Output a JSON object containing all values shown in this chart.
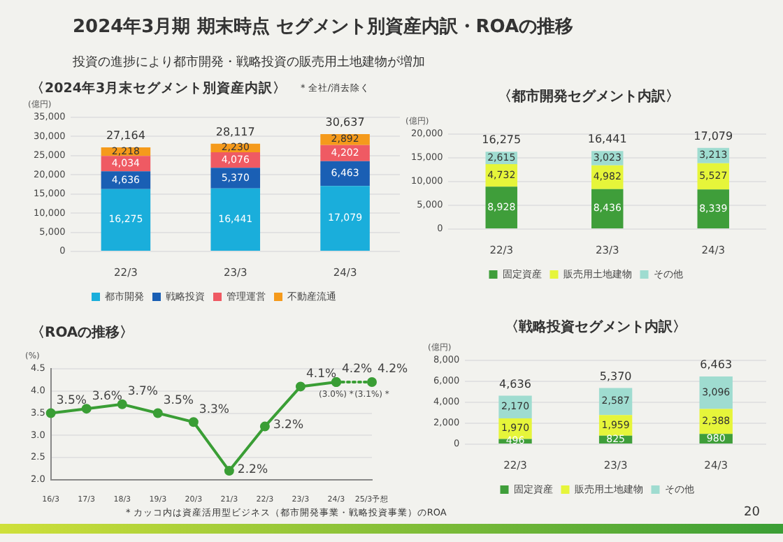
{
  "chart_data": [
    {
      "type": "bar",
      "title": "2024年3月期 期末時点 セグメント別資産内訳・ROAの推移",
      "subtitle": "投資の進捗により都市開発・戦略投資の販売用土地建物が増加",
      "annotations": [
        "〈2024年3月末セグメント別資産内訳〉",
        "* 全社/消去除く"
      ],
      "ylabel": "(億円)",
      "categories": [
        "22/3",
        "23/3",
        "24/3"
      ],
      "stacked": true,
      "totals": [
        "27,164",
        "28,117",
        "30,637"
      ],
      "legend": "bottom",
      "grid": "y",
      "ylim": [
        0,
        35000
      ],
      "yticks": [
        0,
        {
          "value": 5000,
          "label": "5,000"
        },
        {
          "value": 10000,
          "label": "10,000"
        },
        {
          "value": 15000,
          "label": "15,000"
        },
        {
          "value": 20000,
          "label": "20,000"
        },
        {
          "value": 25000,
          "label": "25,000"
        },
        {
          "value": 30000,
          "label": "30,000"
        },
        {
          "value": 35000,
          "label": "35,000"
        }
      ],
      "series": [
        {
          "name": "都市開発",
          "color": "#1aaedb",
          "values": [
            16275,
            16441,
            17079
          ],
          "value_labels": [
            "16,275",
            "16,441",
            "17,079"
          ]
        },
        {
          "name": "戦略投資",
          "color": "#1a5fb4",
          "values": [
            4636,
            5370,
            6463
          ],
          "value_labels": [
            "4,636",
            "5,370",
            "6,463"
          ]
        },
        {
          "name": "管理運営",
          "color": "#ef5a63",
          "values": [
            4034,
            4076,
            4202
          ],
          "value_labels": [
            "4,034",
            "4,076",
            "4,202"
          ]
        },
        {
          "name": "不動産流通",
          "color": "#f59a1b",
          "values": [
            2218,
            2230,
            2892
          ],
          "value_labels": [
            "2,218",
            "2,230",
            "2,892"
          ]
        }
      ]
    },
    {
      "type": "bar",
      "title": "〈都市開発セグメント内訳〉",
      "ylabel": "(億円)",
      "categories": [
        "22/3",
        "23/3",
        "24/3"
      ],
      "stacked": true,
      "totals": [
        "16,275",
        "16,441",
        "17,079"
      ],
      "legend": "bottom",
      "grid": "y",
      "ylim": [
        0,
        20000
      ],
      "yticks": [
        0,
        {
          "value": 5000,
          "label": "5,000"
        },
        {
          "value": 10000,
          "label": "10,000"
        },
        {
          "value": 15000,
          "label": "15,000"
        },
        {
          "value": 20000,
          "label": "20,000"
        }
      ],
      "series": [
        {
          "name": "固定資産",
          "color": "#3f9e3a",
          "values": [
            8928,
            8436,
            8339
          ],
          "value_labels": [
            "8,928",
            "8,436",
            "8,339"
          ]
        },
        {
          "name": "販売用土地建物",
          "color": "#e6f53a",
          "values": [
            4732,
            4982,
            5527
          ],
          "value_labels": [
            "4,732",
            "4,982",
            "5,527"
          ]
        },
        {
          "name": "その他",
          "color": "#9fdcd0",
          "values": [
            2615,
            3023,
            3213
          ],
          "value_labels": [
            "2,615",
            "3,023",
            "3,213"
          ]
        }
      ]
    },
    {
      "type": "line",
      "title": "〈ROAの推移〉",
      "ylabel": "(%)",
      "categories": [
        "16/3",
        "17/3",
        "18/3",
        "19/3",
        "20/3",
        "21/3",
        "22/3",
        "23/3",
        "24/3",
        "25/3予想"
      ],
      "marker": "circle",
      "grid": "y",
      "ylim": [
        2,
        4.5
      ],
      "yticks": [
        {
          "value": 2,
          "label": "2.0"
        },
        2.5,
        {
          "value": 3,
          "label": "3.0"
        },
        3.5,
        {
          "value": 4,
          "label": "4.0"
        },
        4.5
      ],
      "annotations": [
        {
          "text": "(3.0%) *",
          "x": "24/3",
          "y": 4.2
        },
        {
          "text": "(3.1%) *",
          "x": "25/3予想",
          "y": 4.2
        },
        "* カッコ内は資産活用型ビジネス（都市開発事業・戦略投資事業）のROA"
      ],
      "series": [
        {
          "color": "#3a9e35",
          "line_style": "solid",
          "values": [
            3.5,
            3.6,
            3.7,
            3.5,
            3.3,
            2.2,
            3.2,
            4.1,
            4.2,
            null
          ],
          "value_labels": [
            "3.5%",
            "3.6%",
            "3.7%",
            "3.5%",
            "3.3%",
            "2.2%",
            "3.2%",
            "4.1%",
            "4.2%",
            null
          ]
        },
        {
          "color": "#3a9e35",
          "line_style": "dotted",
          "values": [
            null,
            null,
            null,
            null,
            null,
            null,
            null,
            null,
            4.2,
            4.2
          ],
          "value_labels": [
            null,
            null,
            null,
            null,
            null,
            null,
            null,
            null,
            null,
            "4.2%"
          ]
        }
      ]
    },
    {
      "type": "bar",
      "title": "〈戦略投資セグメント内訳〉",
      "ylabel": "(億円)",
      "categories": [
        "22/3",
        "23/3",
        "24/3"
      ],
      "stacked": true,
      "totals": [
        "4,636",
        "5,370",
        "6,463"
      ],
      "legend": "bottom",
      "grid": "y",
      "ylim": [
        0,
        8000
      ],
      "yticks": [
        0,
        {
          "value": 2000,
          "label": "2,000"
        },
        {
          "value": 4000,
          "label": "4,000"
        },
        {
          "value": 6000,
          "label": "6,000"
        },
        {
          "value": 8000,
          "label": "8,000"
        }
      ],
      "annotations": [
        "20"
      ],
      "series": [
        {
          "name": "固定資産",
          "color": "#3f9e3a",
          "values": [
            496,
            825,
            980
          ],
          "value_labels": [
            "496",
            "825",
            "980"
          ]
        },
        {
          "name": "販売用土地建物",
          "color": "#e6f53a",
          "values": [
            1970,
            1959,
            2388
          ],
          "value_labels": [
            "1,970",
            "1,959",
            "2,388"
          ]
        },
        {
          "name": "その他",
          "color": "#9fdcd0",
          "values": [
            2170,
            2587,
            3096
          ],
          "value_labels": [
            "2,170",
            "2,587",
            "3,096"
          ]
        }
      ]
    }
  ]
}
